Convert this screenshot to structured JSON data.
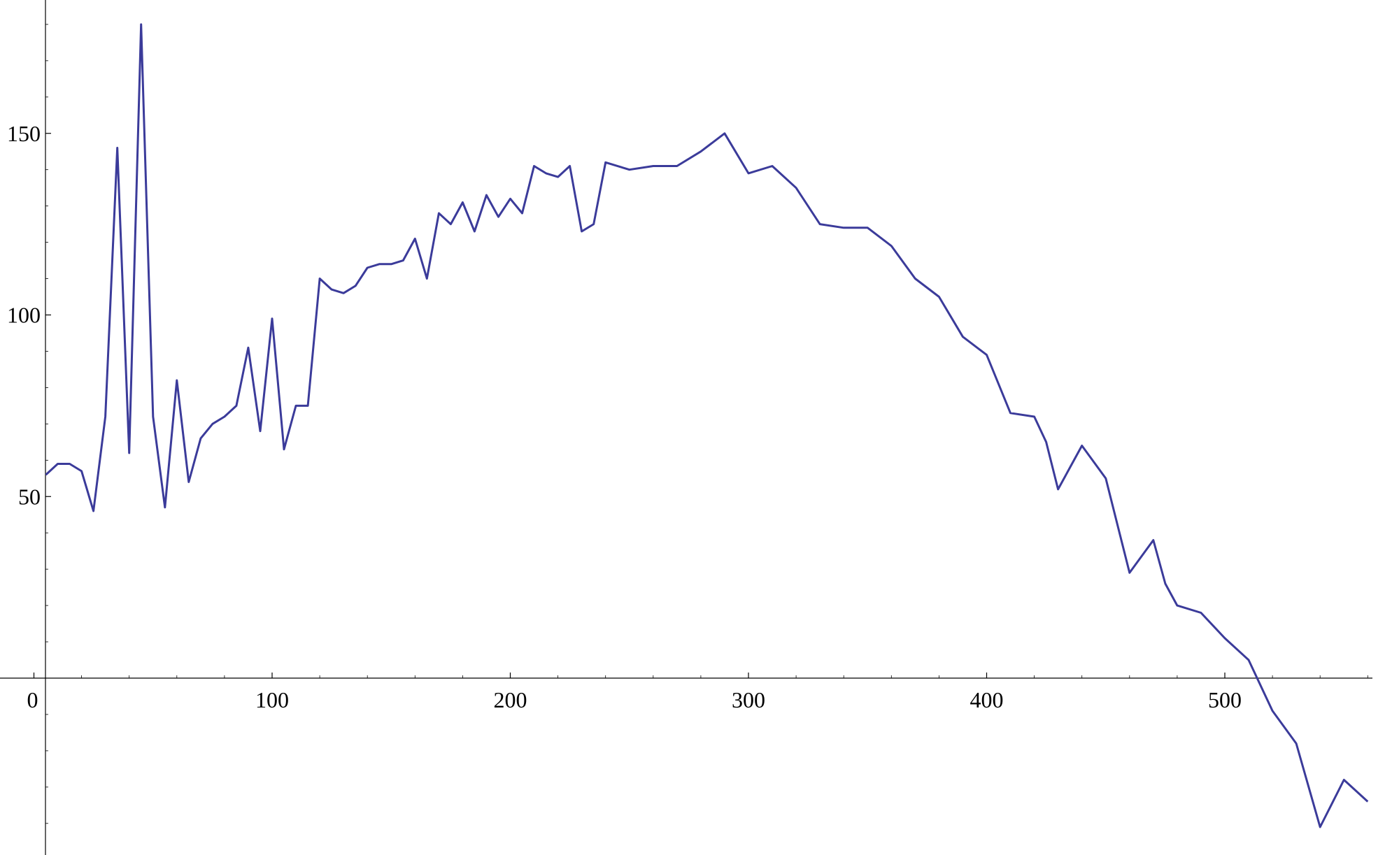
{
  "chart_data": {
    "type": "line",
    "title": "",
    "xlabel": "",
    "ylabel": "",
    "xlim": [
      -10,
      570
    ],
    "ylim": [
      -48,
      186
    ],
    "x_ticks": [
      0,
      100,
      200,
      300,
      400,
      500
    ],
    "y_ticks": [
      50,
      100,
      150
    ],
    "x_tick_labels": [
      "0",
      "100",
      "200",
      "300",
      "400",
      "500"
    ],
    "y_tick_labels": [
      "50",
      "100",
      "150"
    ],
    "grid": false,
    "legend": "none",
    "line_color": "#3b3b9a",
    "series": [
      {
        "x": [
          5,
          10,
          15,
          20,
          25,
          30,
          35,
          40,
          45,
          50,
          55,
          60,
          65,
          70,
          75,
          80,
          85,
          90,
          95,
          100,
          105,
          110,
          115,
          120,
          125,
          130,
          135,
          140,
          145,
          150,
          155,
          160,
          165,
          170,
          175,
          180,
          185,
          190,
          195,
          200,
          205,
          210,
          215,
          220,
          225,
          230,
          235,
          240,
          250,
          260,
          270,
          280,
          290,
          300,
          310,
          320,
          330,
          340,
          350,
          360,
          370,
          380,
          390,
          400,
          410,
          420,
          425,
          430,
          440,
          450,
          460,
          470,
          475,
          480,
          490,
          500,
          510,
          520,
          530,
          540,
          550,
          560
        ],
        "y": [
          56,
          59,
          59,
          57,
          46,
          72,
          146,
          62,
          180,
          72,
          47,
          82,
          54,
          66,
          70,
          72,
          75,
          91,
          68,
          99,
          63,
          75,
          75,
          110,
          107,
          106,
          108,
          113,
          114,
          114,
          115,
          121,
          110,
          128,
          125,
          131,
          123,
          133,
          127,
          132,
          128,
          141,
          139,
          138,
          141,
          123,
          125,
          142,
          140,
          141,
          141,
          145,
          150,
          139,
          141,
          135,
          125,
          124,
          124,
          119,
          110,
          105,
          94,
          89,
          73,
          72,
          65,
          52,
          64,
          55,
          29,
          38,
          26,
          20,
          18,
          11,
          5,
          -9,
          -18,
          -41,
          -28,
          -34
        ]
      }
    ]
  }
}
